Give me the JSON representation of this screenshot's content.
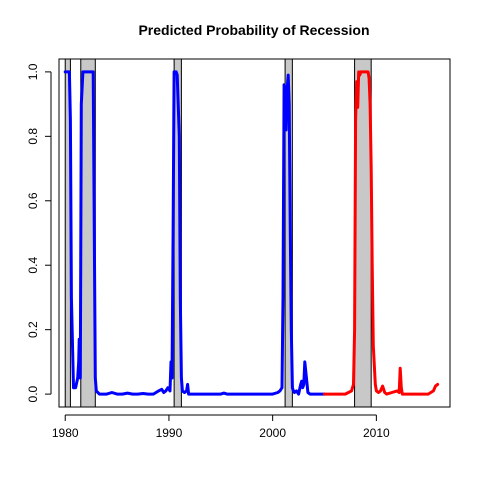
{
  "chart_data": {
    "type": "line",
    "title": "Predicted Probability of Recession",
    "xlabel": "",
    "ylabel": "",
    "xlim": [
      1979.4,
      2017.1
    ],
    "ylim": [
      -0.04,
      1.04
    ],
    "x_ticks": [
      1980,
      1990,
      2000,
      2010
    ],
    "x_tick_labels": [
      "1980",
      "1990",
      "2000",
      "2010"
    ],
    "y_ticks": [
      0.0,
      0.2,
      0.4,
      0.6,
      0.8,
      1.0
    ],
    "y_tick_labels": [
      "0.0",
      "0.2",
      "0.4",
      "0.6",
      "0.8",
      "1.0"
    ],
    "grid": false,
    "legend": "none",
    "recession_shading": {
      "color": "#c8c8c8",
      "periods": [
        [
          1980.0,
          1980.5
        ],
        [
          1981.5,
          1982.9
        ],
        [
          1990.5,
          1991.2
        ],
        [
          2001.2,
          2001.9
        ],
        [
          2007.9,
          2009.5
        ]
      ]
    },
    "series": [
      {
        "color": "#0000ff",
        "x": [
          1980.0,
          1980.1,
          1980.4,
          1980.5,
          1980.6,
          1980.8,
          1981.0,
          1981.2,
          1981.3,
          1981.35,
          1981.45,
          1981.55,
          1981.7,
          1982.0,
          1982.5,
          1982.7,
          1982.8,
          1982.9,
          1983.0,
          1983.3,
          1983.6,
          1984.0,
          1984.5,
          1985.0,
          1985.5,
          1986.0,
          1986.5,
          1987.0,
          1987.5,
          1988.0,
          1988.5,
          1989.0,
          1989.3,
          1989.5,
          1989.7,
          1989.9,
          1990.1,
          1990.2,
          1990.3,
          1990.4,
          1990.5,
          1990.6,
          1990.7,
          1990.8,
          1991.0,
          1991.1,
          1991.2,
          1991.3,
          1991.5,
          1991.7,
          1991.8,
          1991.9,
          1992.0,
          1993.0,
          1994.0,
          1995.0,
          1995.3,
          1995.6,
          1996.0,
          1997.0,
          1998.0,
          1999.0,
          2000.0,
          2000.5,
          2000.7,
          2000.9,
          2001.0,
          2001.1,
          2001.2,
          2001.3,
          2001.4,
          2001.5,
          2001.6,
          2001.7,
          2001.8,
          2001.9,
          2002.0,
          2002.1,
          2002.3,
          2002.5,
          2002.7,
          2002.8,
          2002.9,
          2003.0,
          2003.1,
          2003.2,
          2003.4,
          2003.6,
          2003.8,
          2004.0,
          2004.5,
          2005.0
        ],
        "values": [
          1.0,
          1.0,
          1.0,
          0.85,
          0.3,
          0.02,
          0.02,
          0.05,
          0.1,
          0.17,
          0.05,
          0.9,
          1.0,
          1.0,
          1.0,
          1.0,
          0.5,
          0.05,
          0.01,
          0.0,
          0.0,
          0.0,
          0.005,
          0.0,
          0.0,
          0.003,
          0.0,
          0.0,
          0.002,
          0.0,
          0.0,
          0.01,
          0.015,
          0.005,
          0.01,
          0.02,
          0.01,
          0.1,
          0.05,
          0.5,
          1.0,
          1.0,
          1.0,
          0.99,
          0.8,
          0.3,
          0.05,
          0.01,
          0.005,
          0.01,
          0.03,
          0.0,
          0.0,
          0.0,
          0.0,
          0.0,
          0.003,
          0.0,
          0.0,
          0.0,
          0.0,
          0.0,
          0.0,
          0.005,
          0.01,
          0.02,
          0.3,
          0.96,
          0.95,
          0.82,
          0.95,
          0.99,
          0.9,
          0.5,
          0.2,
          0.02,
          0.01,
          0.005,
          0.01,
          0.0,
          0.03,
          0.04,
          0.02,
          0.03,
          0.1,
          0.07,
          0.005,
          0.0,
          0.0,
          0.0,
          0.0,
          0.0
        ]
      },
      {
        "color": "#ff0000",
        "x": [
          2005.0,
          2006.0,
          2007.0,
          2007.3,
          2007.6,
          2007.8,
          2007.9,
          2008.0,
          2008.1,
          2008.2,
          2008.3,
          2008.4,
          2008.5,
          2008.8,
          2009.0,
          2009.2,
          2009.3,
          2009.4,
          2009.5,
          2009.6,
          2009.7,
          2009.9,
          2010.0,
          2010.2,
          2010.4,
          2010.6,
          2010.8,
          2011.0,
          2011.5,
          2012.0,
          2012.2,
          2012.3,
          2012.4,
          2012.5,
          2012.7,
          2013.0,
          2013.5,
          2014.0,
          2014.5,
          2015.0,
          2015.5,
          2015.7,
          2015.9
        ],
        "values": [
          0.0,
          0.0,
          0.0,
          0.005,
          0.01,
          0.03,
          0.2,
          0.85,
          0.97,
          0.89,
          1.0,
          0.99,
          1.0,
          1.0,
          1.0,
          1.0,
          0.98,
          0.9,
          0.7,
          0.4,
          0.15,
          0.03,
          0.01,
          0.005,
          0.01,
          0.025,
          0.005,
          0.0,
          0.005,
          0.01,
          0.005,
          0.08,
          0.02,
          0.0,
          0.0,
          0.0,
          0.0,
          0.0,
          0.0,
          0.0,
          0.01,
          0.025,
          0.03
        ]
      }
    ]
  }
}
